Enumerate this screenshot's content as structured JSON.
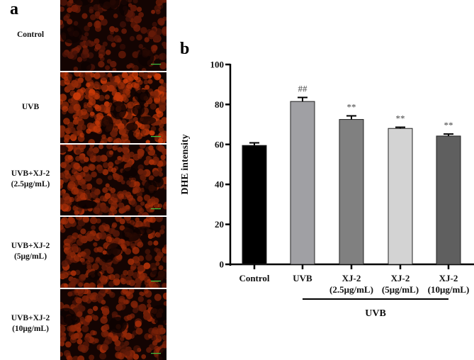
{
  "panel_a": {
    "letter": "a",
    "rows": [
      {
        "label_line1": "Control",
        "label_line2": "",
        "brightness": 0.35
      },
      {
        "label_line1": "UVB",
        "label_line2": "",
        "brightness": 1.0
      },
      {
        "label_line1": "UVB+XJ-2",
        "label_line2": "(2.5μg/mL)",
        "brightness": 0.75
      },
      {
        "label_line1": "UVB+XJ-2",
        "label_line2": "(5μg/mL)",
        "brightness": 0.7
      },
      {
        "label_line1": "UVB+XJ-2",
        "label_line2": "(10μg/mL)",
        "brightness": 0.6
      }
    ]
  },
  "panel_b": {
    "letter": "b"
  },
  "chart_data": {
    "type": "bar",
    "title": "",
    "xlabel": "",
    "ylabel": "DHE intensity",
    "ylim": [
      0,
      100
    ],
    "yticks": [
      0,
      20,
      40,
      60,
      80,
      100
    ],
    "categories": [
      "Control",
      "UVB",
      "XJ-2 (2.5μg/mL)",
      "XJ-2 (5μg/mL)",
      "XJ-2 (10μg/mL)"
    ],
    "category_lines": [
      [
        "Control"
      ],
      [
        "UVB"
      ],
      [
        "XJ-2",
        "(2.5μg/mL)"
      ],
      [
        "XJ-2",
        "(5μg/mL)"
      ],
      [
        "XJ-2",
        "(10μg/mL)"
      ]
    ],
    "values": [
      59.5,
      81.5,
      72.5,
      68.0,
      64.2
    ],
    "errors": [
      1.3,
      2.0,
      1.8,
      0.6,
      1.0
    ],
    "colors": [
      "#000000",
      "#a0a0a4",
      "#808080",
      "#d3d3d3",
      "#5f5f5f"
    ],
    "annotations": [
      "",
      "##",
      "**",
      "**",
      "**"
    ],
    "group_bracket": {
      "label": "UVB",
      "from_index": 1,
      "to_index": 4
    },
    "grid": false,
    "legend": null
  }
}
